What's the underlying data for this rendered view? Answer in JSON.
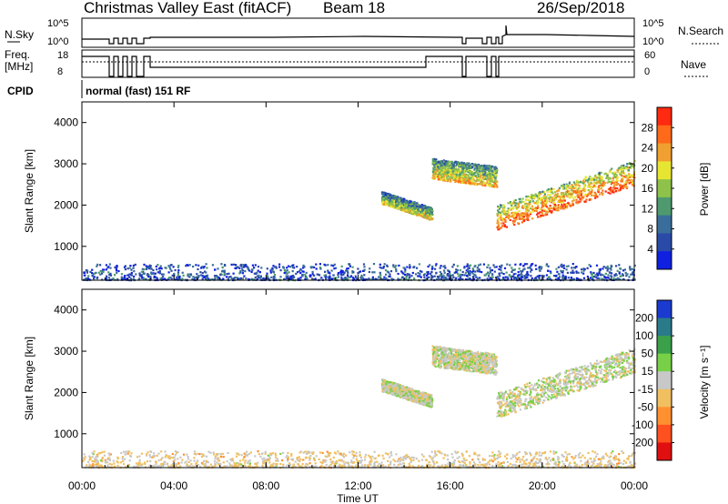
{
  "header": {
    "title": "Christmas Valley East (fitACF)",
    "beam": "Beam 18",
    "date": "26/Sep/2018"
  },
  "status_panels": {
    "nsky_label": "N.Sky",
    "nsky_ticks": [
      "10^5",
      "10^0"
    ],
    "nsearch_label": "N.Search",
    "nsearch_ticks": [
      "10^5",
      "10^0"
    ],
    "freq_label": "Freq.",
    "freq_unit": "[MHz]",
    "freq_ticks": [
      "18",
      "8"
    ],
    "nave_label": "Nave",
    "nave_ticks": [
      "60",
      "0"
    ],
    "cpid_label": "CPID",
    "cpid_value": "normal (fast) 151 RF"
  },
  "x_axis": {
    "label": "Time UT",
    "ticks": [
      "00:00",
      "04:00",
      "08:00",
      "12:00",
      "16:00",
      "20:00",
      "00:00"
    ]
  },
  "colors": {
    "power": [
      "#1020e0",
      "#2a4aa8",
      "#3a6e9a",
      "#4e9a6e",
      "#8ec24a",
      "#e6e632",
      "#f0a030",
      "#ff6a1a",
      "#ff2a10"
    ],
    "velocity": [
      "#e01010",
      "#ff5020",
      "#ff9030",
      "#f0c060",
      "#c8c8c8",
      "#78d048",
      "#3aa04a",
      "#2a7a8a",
      "#1a3ad0"
    ]
  },
  "chart_data": [
    {
      "type": "heatmap",
      "title": "Power",
      "ylabel": "Slant Range [km]",
      "ylim": [
        180,
        4500
      ],
      "yticks": [
        1000,
        2000,
        3000,
        4000
      ],
      "xlim": [
        0,
        24
      ],
      "colorbar": {
        "label": "Power [dB]",
        "range": [
          0,
          32
        ],
        "ticks": [
          4,
          8,
          12,
          16,
          20,
          24,
          28
        ]
      },
      "features": [
        {
          "name": "near-range clutter",
          "t_start": 0,
          "t_end": 24,
          "r_min": 200,
          "r_max": 600,
          "value": 6
        },
        {
          "name": "echo 13-15h",
          "t_start": 13.0,
          "t_end": 15.2,
          "r_start": 2200,
          "r_end": 1800,
          "thickness": 300,
          "value": 14
        },
        {
          "name": "echo 15-18h",
          "t_start": 15.2,
          "t_end": 18.0,
          "r_start": 2900,
          "r_end": 2700,
          "thickness": 500,
          "value": 16
        },
        {
          "name": "main echo 18-24h",
          "t_start": 18.0,
          "t_end": 24.0,
          "r_start": 1700,
          "r_end": 2800,
          "thickness": 600,
          "value": 22
        }
      ]
    },
    {
      "type": "heatmap",
      "title": "Velocity",
      "ylabel": "Slant Range [km]",
      "ylim": [
        180,
        4500
      ],
      "yticks": [
        1000,
        2000,
        3000,
        4000
      ],
      "xlim": [
        0,
        24
      ],
      "colorbar": {
        "label": "Velocity [m s⁻¹]",
        "range": [
          -250,
          250
        ],
        "ticks": [
          200,
          100,
          50,
          15,
          -15,
          -50,
          -100,
          -200
        ]
      },
      "features": [
        {
          "name": "near-range clutter",
          "t_start": 0,
          "t_end": 24,
          "r_min": 200,
          "r_max": 600,
          "value": -30
        },
        {
          "name": "echo 13-15h",
          "t_start": 13.0,
          "t_end": 15.2,
          "r_start": 2200,
          "r_end": 1800,
          "thickness": 300,
          "value": 0
        },
        {
          "name": "echo 15-18h",
          "t_start": 15.2,
          "t_end": 18.0,
          "r_start": 2900,
          "r_end": 2700,
          "thickness": 500,
          "value": 0
        },
        {
          "name": "main echo 18-24h",
          "t_start": 18.0,
          "t_end": 24.0,
          "r_start": 1700,
          "r_end": 2800,
          "thickness": 600,
          "value": 0
        }
      ]
    }
  ]
}
